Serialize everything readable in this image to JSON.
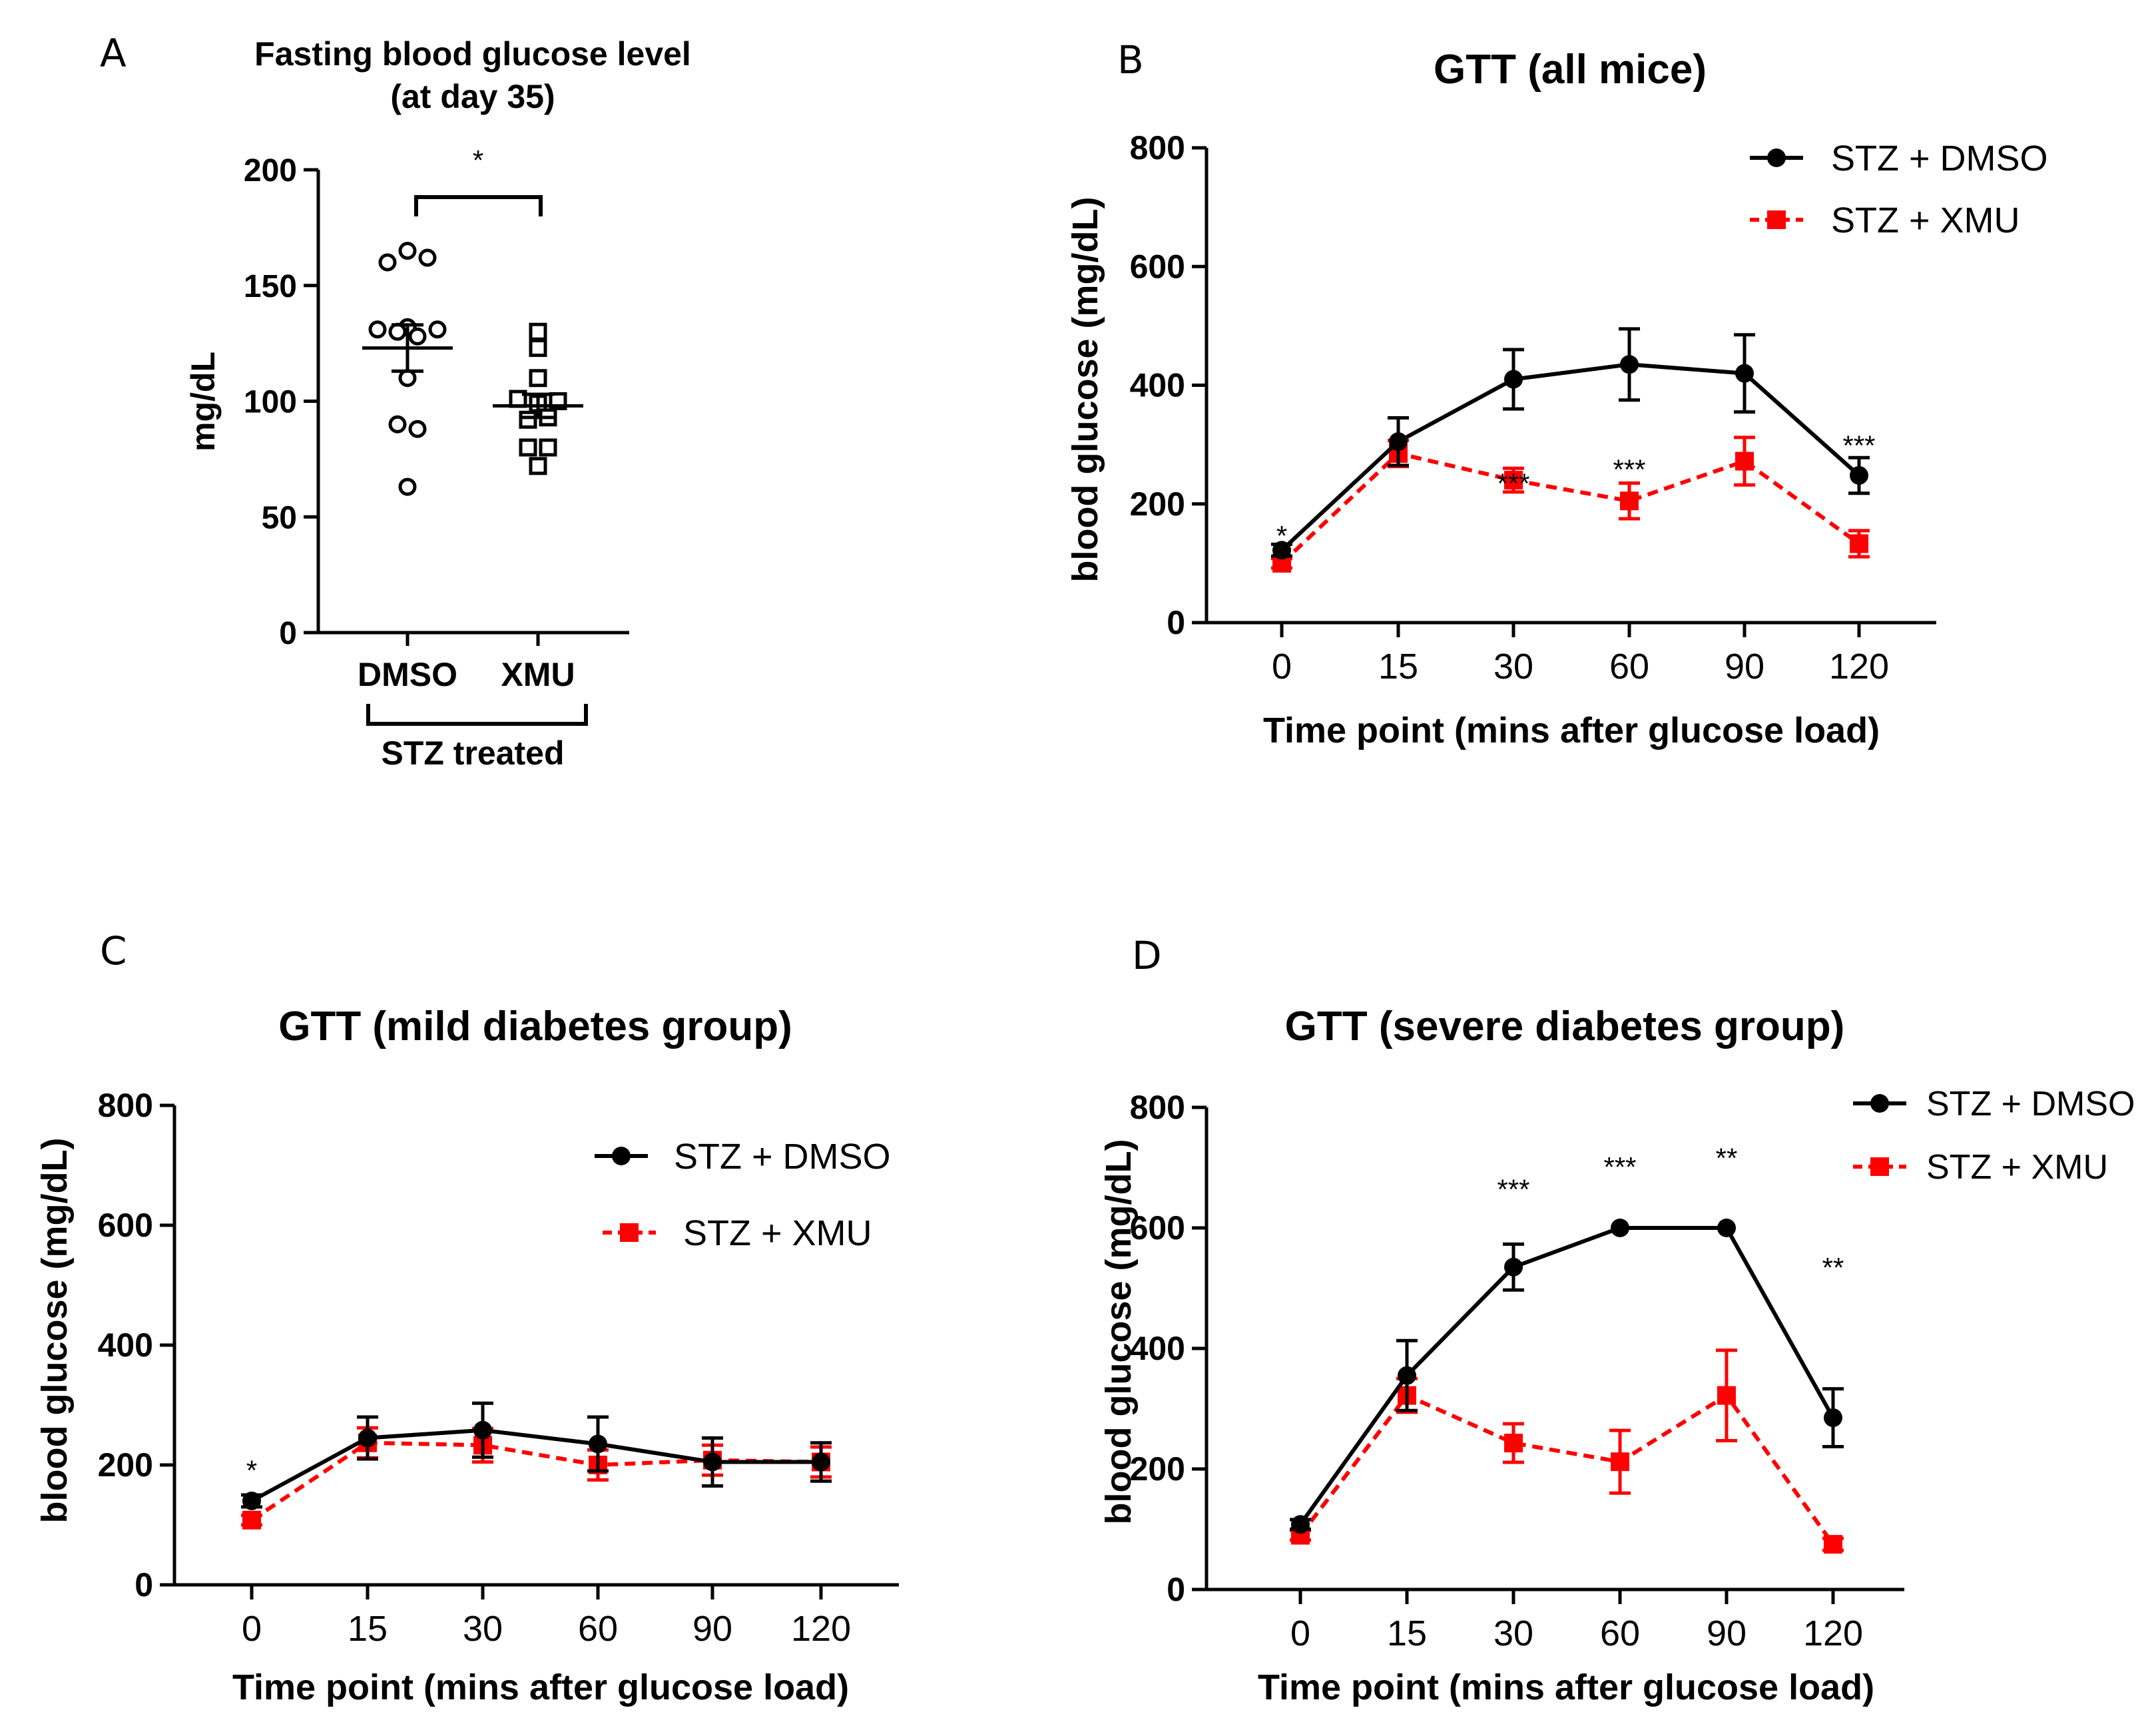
{
  "colors": {
    "dmso": "#000000",
    "xmu": "#ff0000"
  },
  "chart_data": [
    {
      "panel": "A",
      "type": "scatter",
      "title": [
        "Fasting blood glucose level",
        "(at day 35)"
      ],
      "xlabel": "",
      "ylabel": "mg/dL",
      "ylim": [
        0,
        200
      ],
      "yticks": [
        0,
        50,
        100,
        150,
        200
      ],
      "categories": [
        "DMSO",
        "XMU"
      ],
      "group_label": "STZ treated",
      "series": [
        {
          "name": "DMSO",
          "marker": "open-circle",
          "points": [
            160,
            165,
            162,
            131,
            132,
            130,
            128,
            131,
            110,
            90,
            88,
            63
          ],
          "mean": 123,
          "sem": 10
        },
        {
          "name": "XMU",
          "marker": "open-square",
          "points": [
            130,
            123,
            110,
            101,
            99,
            100,
            92,
            93,
            80,
            80,
            72
          ],
          "mean": 98,
          "sem": 5
        }
      ],
      "significance": "*"
    },
    {
      "panel": "B",
      "type": "line",
      "title": "GTT (all mice)",
      "xlabel": "Time point (mins after glucose load)",
      "ylabel": "blood glucose (mg/dL)",
      "ylim": [
        0,
        800
      ],
      "yticks": [
        0,
        200,
        400,
        600,
        800
      ],
      "categories": [
        "0",
        "15",
        "30",
        "60",
        "90",
        "120"
      ],
      "series": [
        {
          "name": "STZ + DMSO",
          "values": [
            122,
            305,
            410,
            435,
            420,
            248
          ],
          "errors": [
            10,
            40,
            50,
            60,
            65,
            30
          ]
        },
        {
          "name": "STZ + XMU",
          "values": [
            100,
            285,
            240,
            205,
            272,
            133
          ],
          "errors": [
            8,
            22,
            20,
            30,
            40,
            22
          ]
        }
      ],
      "significance": [
        "*",
        "",
        "***",
        "***",
        "",
        "***"
      ],
      "sig_values": [
        130,
        0,
        218,
        242,
        0,
        282
      ]
    },
    {
      "panel": "C",
      "type": "line",
      "title": "GTT (mild diabetes group)",
      "xlabel": "Time point (mins after glucose load)",
      "ylabel": "blood glucose (mg/dL)",
      "ylim": [
        0,
        800
      ],
      "yticks": [
        0,
        200,
        400,
        600,
        800
      ],
      "categories": [
        "0",
        "15",
        "30",
        "60",
        "90",
        "120"
      ],
      "series": [
        {
          "name": "STZ + DMSO",
          "values": [
            140,
            245,
            258,
            235,
            205,
            205
          ],
          "errors": [
            10,
            35,
            45,
            45,
            40,
            32
          ]
        },
        {
          "name": "STZ + XMU",
          "values": [
            108,
            237,
            233,
            200,
            208,
            205
          ],
          "errors": [
            8,
            25,
            28,
            25,
            25,
            25
          ]
        }
      ],
      "significance": [
        "*",
        "",
        "",
        "",
        "",
        ""
      ],
      "sig_values": [
        175,
        0,
        0,
        0,
        0,
        0
      ]
    },
    {
      "panel": "D",
      "type": "line",
      "title": "GTT (severe diabetes group)",
      "xlabel": "Time point (mins after glucose load)",
      "ylabel": "blood glucose (mg/dL)",
      "ylim": [
        0,
        800
      ],
      "yticks": [
        0,
        200,
        400,
        600,
        800
      ],
      "categories": [
        "0",
        "15",
        "30",
        "60",
        "90",
        "120"
      ],
      "series": [
        {
          "name": "STZ + DMSO",
          "values": [
            108,
            355,
            535,
            600,
            600,
            285
          ],
          "errors": [
            8,
            58,
            38,
            0,
            0,
            48
          ]
        },
        {
          "name": "STZ + XMU",
          "values": [
            90,
            322,
            243,
            212,
            322,
            75
          ],
          "errors": [
            8,
            28,
            32,
            52,
            75,
            10
          ]
        }
      ],
      "significance": [
        "",
        "",
        "***",
        "***",
        "**",
        "**"
      ],
      "sig_values": [
        0,
        0,
        648,
        685,
        700,
        518
      ]
    }
  ]
}
